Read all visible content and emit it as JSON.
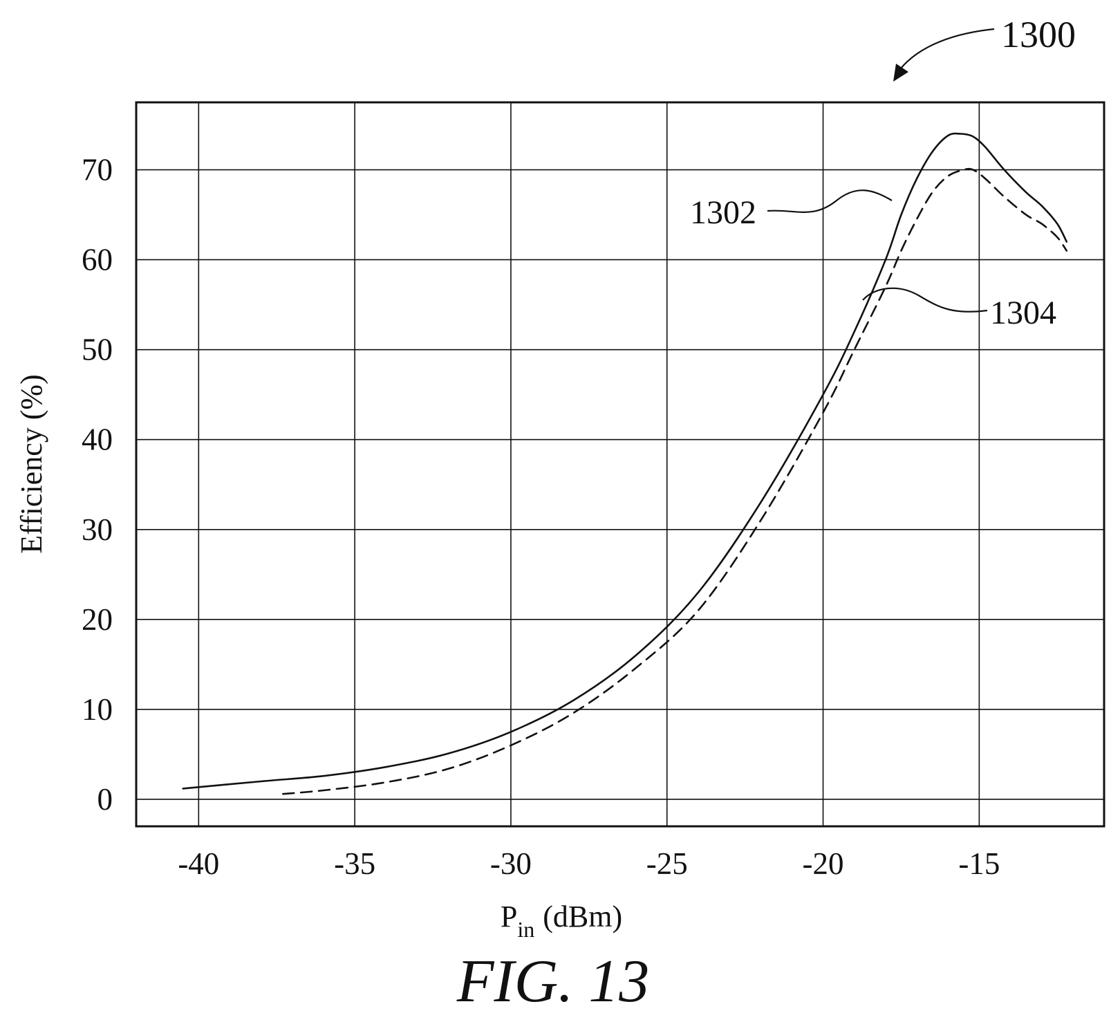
{
  "chart_data": {
    "type": "line",
    "xlabel": "P",
    "xlabel_sub": "in",
    "xlabel_unit": "(dBm)",
    "ylabel": "Efficiency (%)",
    "xlim": [
      -42,
      -11
    ],
    "ylim": [
      -3,
      77.5
    ],
    "x_ticks": [
      -40,
      -35,
      -30,
      -25,
      -20,
      -15
    ],
    "x_tick_labels": [
      "-40",
      "-35",
      "-30",
      "-25",
      "-20",
      "-15"
    ],
    "y_ticks": [
      0,
      10,
      20,
      30,
      40,
      50,
      60,
      70
    ],
    "y_tick_labels": [
      "0",
      "10",
      "20",
      "30",
      "40",
      "50",
      "60",
      "70"
    ],
    "grid": true,
    "series": [
      {
        "name": "1302",
        "style": "solid",
        "x": [
          -40.5,
          -38,
          -36,
          -34,
          -32,
          -30,
          -28,
          -26,
          -24,
          -22,
          -20,
          -19,
          -18,
          -17.5,
          -17,
          -16.5,
          -16,
          -15.6,
          -15.2,
          -14.8,
          -14.2,
          -13.5,
          -13,
          -12.5,
          -12.2
        ],
        "y": [
          1.2,
          2.0,
          2.6,
          3.6,
          5.1,
          7.5,
          11,
          16,
          23,
          33,
          45,
          52,
          60,
          65,
          69,
          72,
          73.8,
          74,
          73.7,
          72.5,
          70,
          67.5,
          66,
          64,
          62
        ]
      },
      {
        "name": "1304",
        "style": "dashed",
        "x": [
          -37.3,
          -36,
          -34,
          -32,
          -30,
          -28,
          -26,
          -24,
          -22,
          -20,
          -19,
          -18,
          -17.5,
          -17,
          -16.5,
          -16,
          -15.5,
          -15.2,
          -14.8,
          -14.2,
          -13.5,
          -13,
          -12.5,
          -12.2
        ],
        "y": [
          0.6,
          1.0,
          1.9,
          3.4,
          6.0,
          9.6,
          14.6,
          21,
          31,
          43,
          50,
          57,
          61,
          64.5,
          67.5,
          69.3,
          70,
          70,
          69,
          67,
          65,
          64,
          62.5,
          61
        ]
      }
    ],
    "annotations": [
      {
        "label": "1302",
        "points_to": "series-1302"
      },
      {
        "label": "1304",
        "points_to": "series-1304"
      }
    ]
  },
  "figure": {
    "reference_number": "1300",
    "caption": "FIG. 13"
  }
}
